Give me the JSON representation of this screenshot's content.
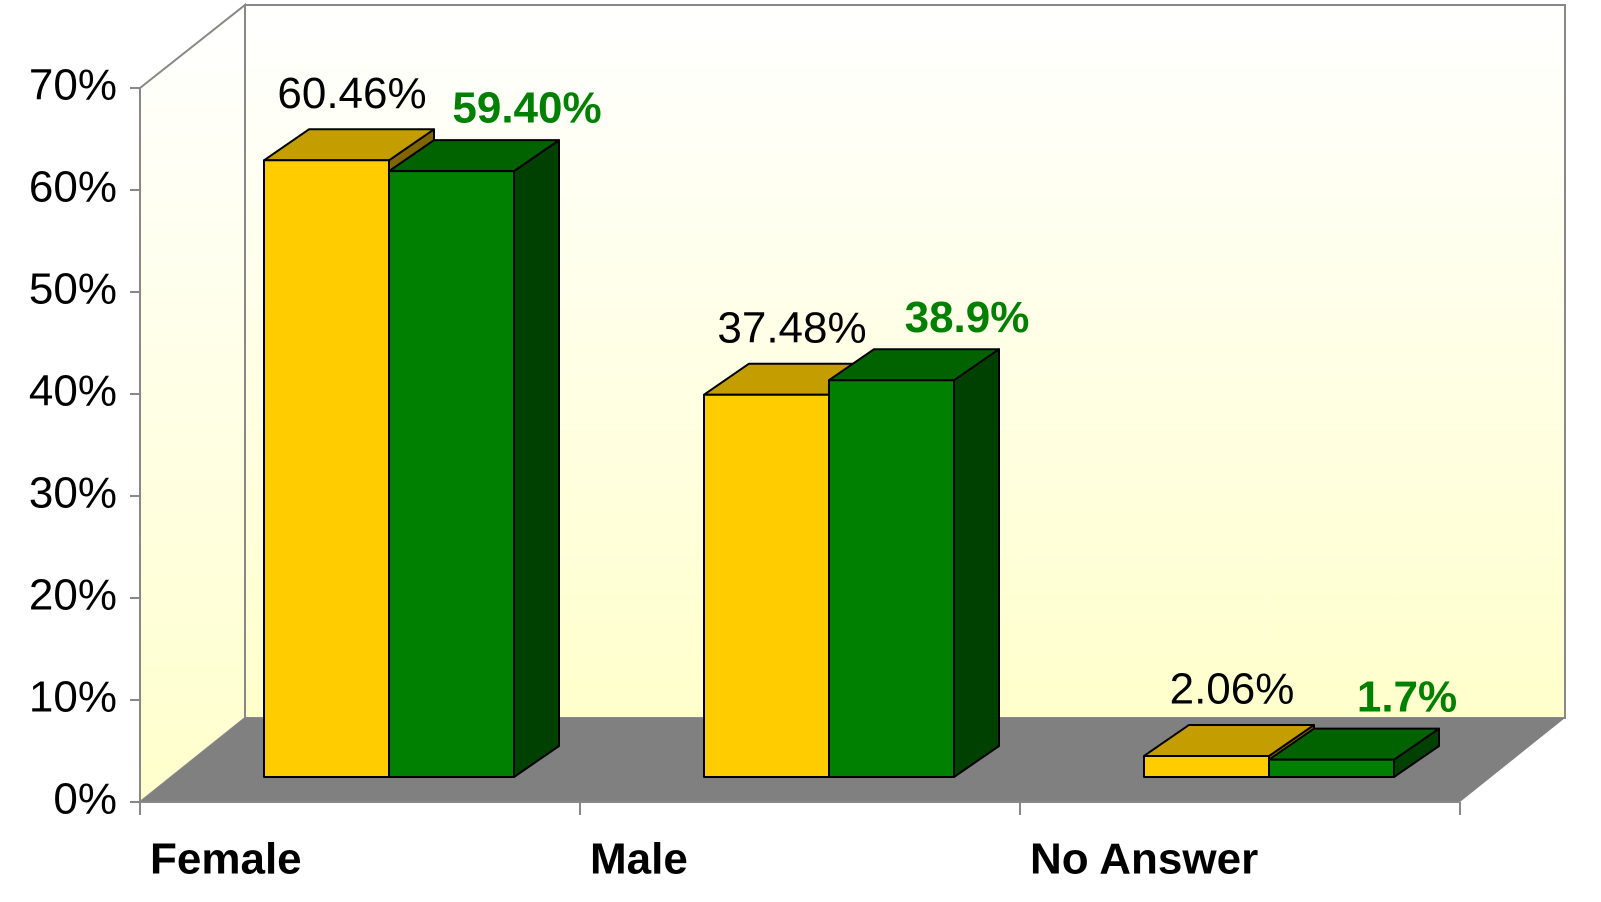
{
  "chart_data": {
    "type": "bar3d",
    "categories": [
      "Female",
      "Male",
      "No Answer"
    ],
    "series": [
      {
        "color": "#ffcc00",
        "values": [
          60.46,
          37.48,
          2.06
        ],
        "value_labels": [
          "60.46%",
          "37.48%",
          "2.06%"
        ]
      },
      {
        "color": "#008000",
        "values": [
          59.4,
          38.9,
          1.7
        ],
        "value_labels": [
          "59.40%",
          "38.9%",
          "1.7%"
        ]
      }
    ],
    "ylim": [
      0,
      70
    ],
    "yticks": [
      {
        "value": 0,
        "label": "0%"
      },
      {
        "value": 10,
        "label": "10%"
      },
      {
        "value": 20,
        "label": "20%"
      },
      {
        "value": 30,
        "label": "30%"
      },
      {
        "value": 40,
        "label": "40%"
      },
      {
        "value": 50,
        "label": "50%"
      },
      {
        "value": 60,
        "label": "60%"
      },
      {
        "value": 70,
        "label": "70%"
      }
    ],
    "grid": false
  }
}
